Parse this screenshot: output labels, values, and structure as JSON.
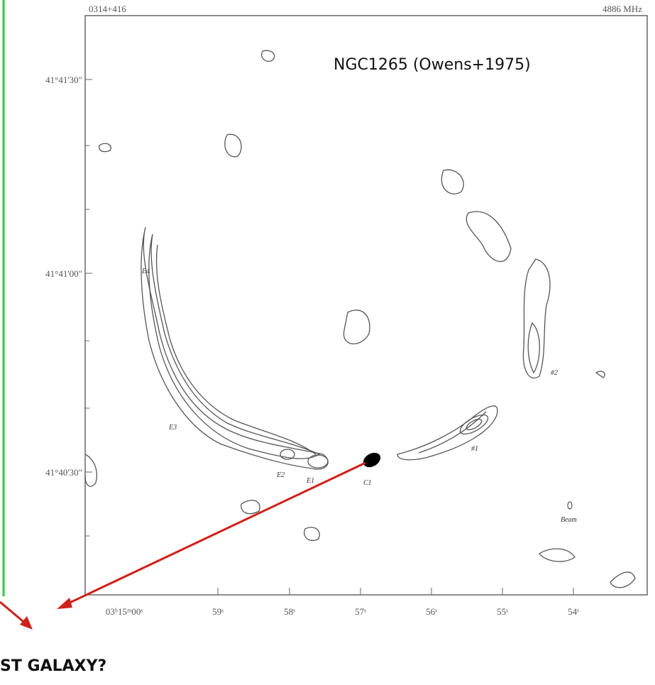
{
  "map": {
    "source": "0314+416",
    "frequency": "4886 MHz",
    "caption": "NGC1265 (Owens+1975)",
    "dec_labels": [
      "41°41'30\"",
      "41°41'00\"",
      "41°40'30\""
    ],
    "ra_labels": [
      "03ʰ15ᵐ00ˢ",
      "59ˢ",
      "58ˢ",
      "57ˢ",
      "56ˢ",
      "55ˢ",
      "54ˢ"
    ],
    "component_labels": [
      "E4",
      "E3",
      "E2",
      "E1",
      "C1",
      "#1",
      "#2",
      "Beam"
    ]
  },
  "footer": {
    "question": "ST GALAXY?"
  }
}
